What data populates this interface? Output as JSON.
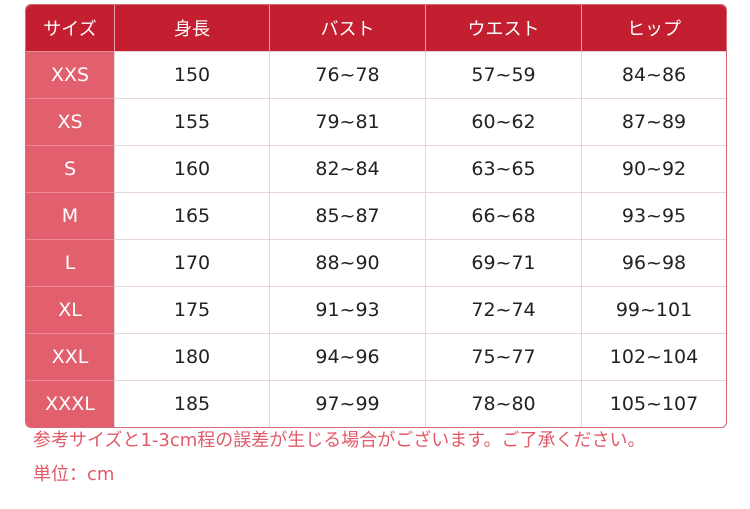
{
  "headers": [
    "サイズ",
    "身長",
    "バスト",
    "ウエスト",
    "ヒップ"
  ],
  "rows": [
    [
      "XXS",
      "150",
      "76~78",
      "57~59",
      "84~86"
    ],
    [
      "XS",
      "155",
      "79~81",
      "60~62",
      "87~89"
    ],
    [
      "S",
      "160",
      "82~84",
      "63~65",
      "90~92"
    ],
    [
      "M",
      "165",
      "85~87",
      "66~68",
      "93~95"
    ],
    [
      "L",
      "170",
      "88~90",
      "69~71",
      "96~98"
    ],
    [
      "XL",
      "175",
      "91~93",
      "72~74",
      "99~101"
    ],
    [
      "XXL",
      "180",
      "94~96",
      "75~77",
      "102~104"
    ],
    [
      "XXXL",
      "185",
      "97~99",
      "78~80",
      "105~107"
    ]
  ],
  "notes": {
    "tolerance": "参考サイズと1-3cm程の誤差が生じる場合がございます。ご了承ください。",
    "unit": "単位：cm"
  },
  "colors": {
    "header": "#c41f31",
    "size_column": "#e2606e",
    "note": "#e05a68"
  }
}
